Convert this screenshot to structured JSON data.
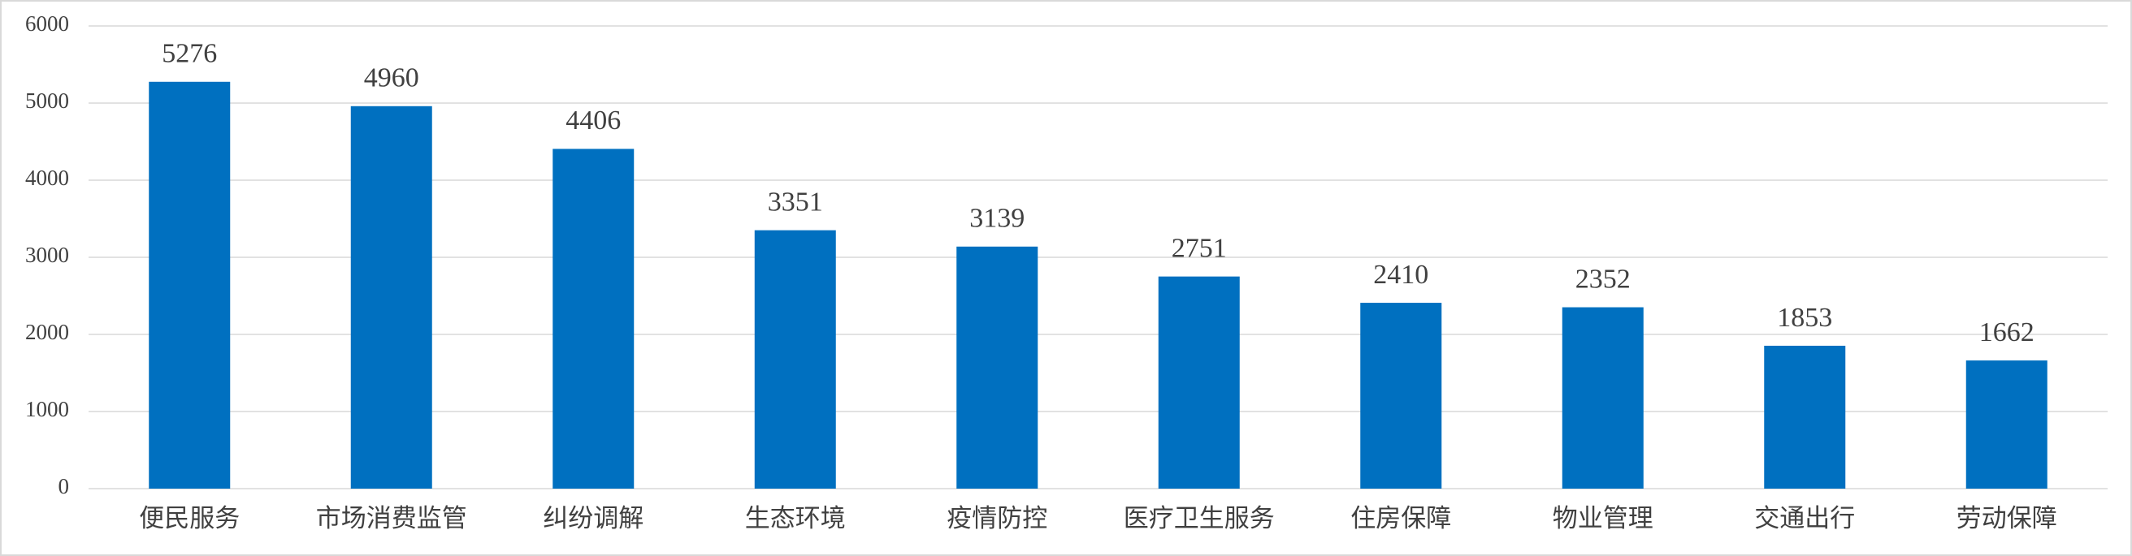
{
  "chart_data": {
    "type": "bar",
    "categories": [
      "便民服务",
      "市场消费监管",
      "纠纷调解",
      "生态环境",
      "疫情防控",
      "医疗卫生服务",
      "住房保障",
      "物业管理",
      "交通出行",
      "劳动保障"
    ],
    "values": [
      5276,
      4960,
      4406,
      3351,
      3139,
      2751,
      2410,
      2352,
      1853,
      1662
    ],
    "color": "#0070c0",
    "ylim": [
      0,
      6000
    ],
    "yticks": [
      0,
      1000,
      2000,
      3000,
      4000,
      5000,
      6000
    ],
    "grid": true
  }
}
